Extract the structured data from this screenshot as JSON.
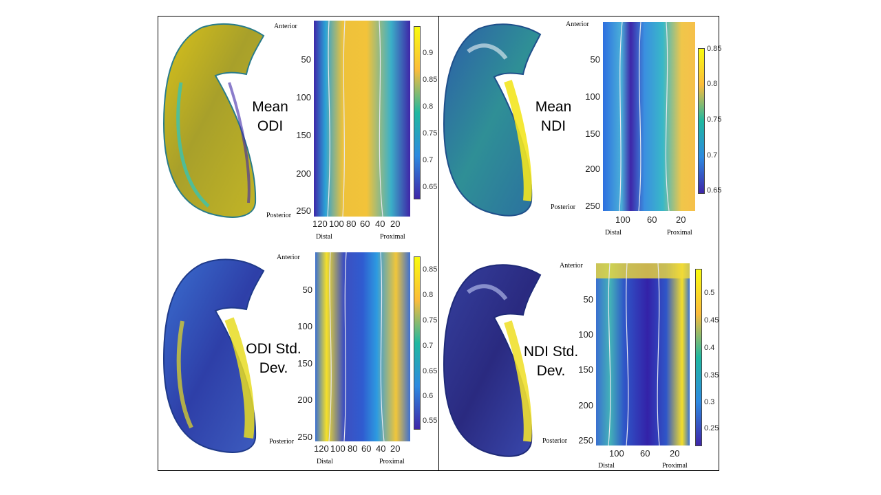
{
  "panels": [
    {
      "id": "mean-odi",
      "title_line1": "Mean",
      "title_line2": "ODI",
      "anterior": "Anterior",
      "posterior": "Posterior",
      "distal": "Distal",
      "proximal": "Proximal",
      "y_ticks": [
        "50",
        "100",
        "150",
        "200",
        "250"
      ],
      "x_ticks": [
        "120",
        "100",
        "80",
        "60",
        "40",
        "20"
      ],
      "colorbar_ticks": [
        "0.9",
        "0.85",
        "0.8",
        "0.75",
        "0.7",
        "0.65"
      ]
    },
    {
      "id": "mean-ndi",
      "title_line1": "Mean",
      "title_line2": "NDI",
      "anterior": "Anterior",
      "posterior": "Posterior",
      "distal": "Distal",
      "proximal": "Proximal",
      "y_ticks": [
        "50",
        "100",
        "150",
        "200",
        "250"
      ],
      "x_ticks": [
        "100",
        "60",
        "20"
      ],
      "colorbar_ticks": [
        "0.85",
        "0.8",
        "0.75",
        "0.7",
        "0.65"
      ]
    },
    {
      "id": "odi-std",
      "title_line1": "ODI Std.",
      "title_line2": "Dev.",
      "anterior": "Anterior",
      "posterior": "Posterior",
      "distal": "Distal",
      "proximal": "Proximal",
      "y_ticks": [
        "50",
        "100",
        "150",
        "200",
        "250"
      ],
      "x_ticks": [
        "120",
        "100",
        "80",
        "60",
        "40",
        "20"
      ],
      "colorbar_ticks": [
        "0.85",
        "0.8",
        "0.75",
        "0.7",
        "0.65",
        "0.6",
        "0.55"
      ]
    },
    {
      "id": "ndi-std",
      "title_line1": "NDI Std.",
      "title_line2": "Dev.",
      "anterior": "Anterior",
      "posterior": "Posterior",
      "distal": "Distal",
      "proximal": "Proximal",
      "y_ticks": [
        "50",
        "100",
        "150",
        "200",
        "250"
      ],
      "x_ticks": [
        "100",
        "60",
        "20"
      ],
      "colorbar_ticks": [
        "0.5",
        "0.45",
        "0.4",
        "0.35",
        "0.3",
        "0.25"
      ]
    }
  ],
  "colors": {
    "parula_low": "#3e26a8",
    "parula_mid": "#1fb8a0",
    "parula_high": "#f9fb0e",
    "contour": "#e8e8f0"
  }
}
